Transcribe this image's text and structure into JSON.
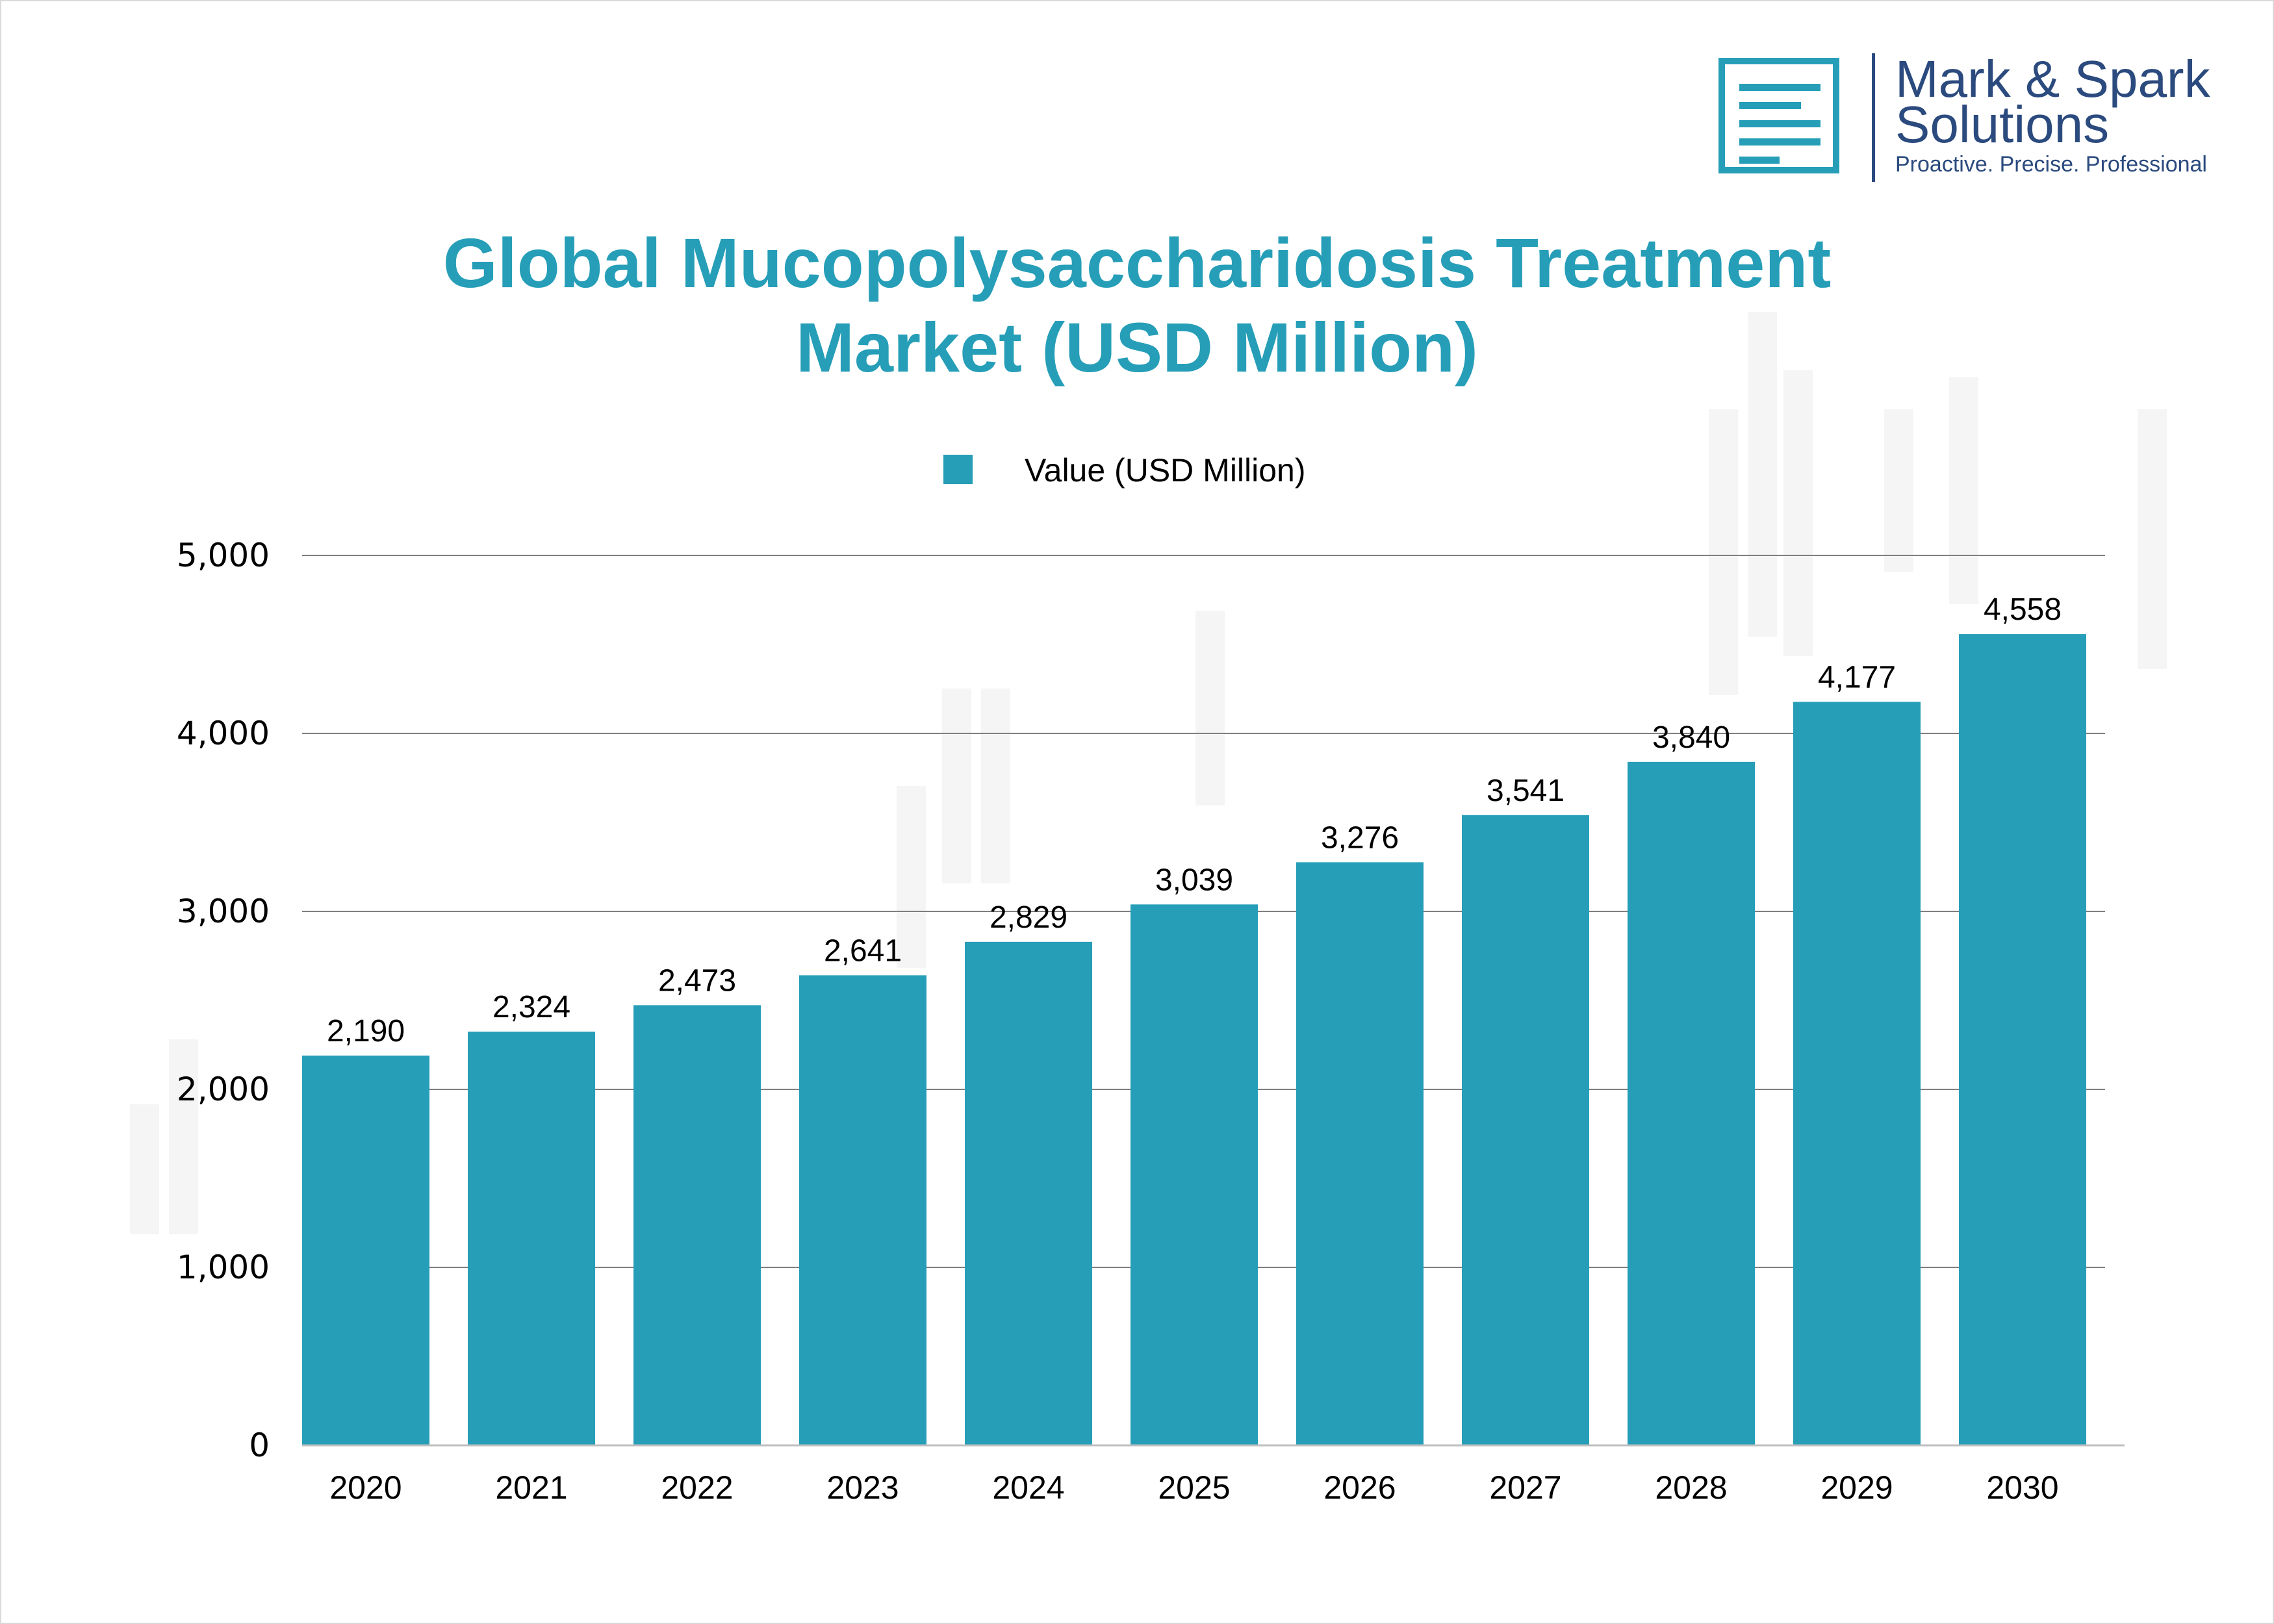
{
  "brand": {
    "name_line1": "Mark & Spark",
    "name_line2": "Solutions",
    "tagline": "Proactive. Precise. Professional",
    "logo_icon": "document-lines-icon",
    "primary_color": "#269eb8",
    "text_color": "#2b4a7e"
  },
  "chart_data": {
    "type": "bar",
    "title": "Global Mucopolysaccharidosis Treatment Market (USD Million)",
    "title_lines": [
      "Global Mucopolysaccharidosis Treatment",
      "Market (USD Million)"
    ],
    "xlabel": "",
    "ylabel": "",
    "categories": [
      "2020",
      "2021",
      "2022",
      "2023",
      "2024",
      "2025",
      "2026",
      "2027",
      "2028",
      "2029",
      "2030"
    ],
    "series": [
      {
        "name": "Value (USD Million)",
        "color": "#269eb8",
        "values": [
          2190,
          2324,
          2473,
          2641,
          2829,
          3039,
          3276,
          3541,
          3840,
          4177,
          4558
        ]
      }
    ],
    "data_labels": [
      "2,190",
      "2,324",
      "2,473",
      "2,641",
      "2,829",
      "3,039",
      "3,276",
      "3,541",
      "3,840",
      "4,177",
      "4,558"
    ],
    "ylim": [
      0,
      5000
    ],
    "yticks": [
      0,
      1000,
      2000,
      3000,
      4000,
      5000
    ],
    "ytick_labels": [
      "0",
      "1,000",
      "2,000",
      "3,000",
      "4,000",
      "5,000"
    ],
    "grid": true,
    "legend_position": "top-center"
  }
}
